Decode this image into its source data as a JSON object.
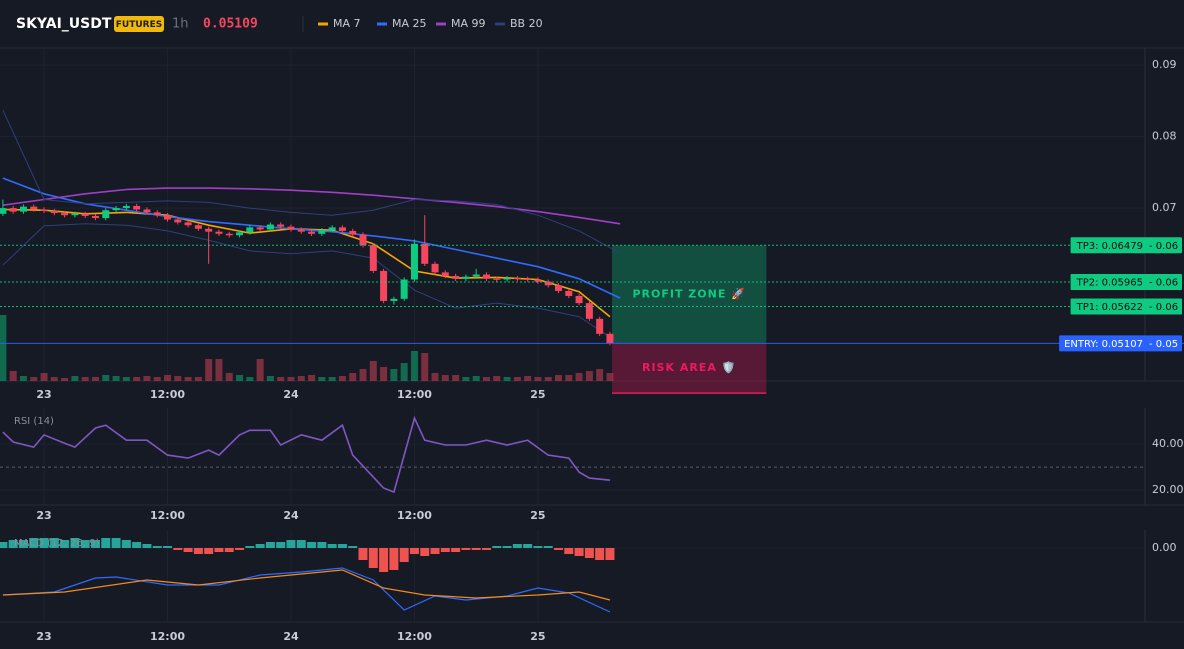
{
  "header": {
    "symbol": "SKYAI_USDT",
    "badge": "FUTURES",
    "interval": "1h",
    "last_price": 0.05109
  },
  "chart_data": [
    {
      "type": "candlestick",
      "xlim": [
        -4.28,
        107
      ],
      "xticks": [
        {
          "value": 0,
          "label": "23"
        },
        {
          "value": 12,
          "label": "12:00"
        },
        {
          "value": 24,
          "label": "24"
        },
        {
          "value": 36,
          "label": "12:00"
        },
        {
          "value": 48,
          "label": "25"
        }
      ],
      "ylim": [
        0.0458,
        0.0924
      ],
      "yticks": [
        0.07,
        0.08,
        0.09
      ],
      "grid": true,
      "up_color": "#0ecb81",
      "down_color": "#f6465d",
      "x": [
        -4,
        -3,
        -2,
        -1,
        0,
        1,
        2,
        3,
        4,
        5,
        6,
        7,
        8,
        9,
        10,
        11,
        12,
        13,
        14,
        15,
        16,
        17,
        18,
        19,
        20,
        21,
        22,
        23,
        24,
        25,
        26,
        27,
        28,
        29,
        30,
        31,
        32,
        33,
        34,
        35,
        36,
        37,
        38,
        39,
        40,
        41,
        42,
        43,
        44,
        45,
        46,
        47,
        48,
        49,
        50,
        51,
        52,
        53,
        54,
        55
      ],
      "open": [
        0.0692,
        0.07,
        0.0695,
        0.0702,
        0.0698,
        0.0696,
        0.0693,
        0.069,
        0.0692,
        0.0689,
        0.0686,
        0.0697,
        0.07,
        0.0703,
        0.0698,
        0.0694,
        0.069,
        0.0684,
        0.068,
        0.0676,
        0.0671,
        0.0667,
        0.0664,
        0.0662,
        0.0666,
        0.0673,
        0.067,
        0.0677,
        0.0674,
        0.067,
        0.0667,
        0.0664,
        0.0669,
        0.0673,
        0.0668,
        0.0663,
        0.0648,
        0.0612,
        0.057,
        0.0573,
        0.06,
        0.065,
        0.0622,
        0.061,
        0.0605,
        0.0601,
        0.0604,
        0.0607,
        0.0601,
        0.06,
        0.0602,
        0.0601,
        0.06,
        0.0597,
        0.0592,
        0.0584,
        0.0577,
        0.0567,
        0.0545,
        0.0524
      ],
      "high": [
        0.0712,
        0.0703,
        0.0705,
        0.0705,
        0.0701,
        0.0699,
        0.0696,
        0.0695,
        0.0695,
        0.0692,
        0.07,
        0.0703,
        0.0706,
        0.0706,
        0.0701,
        0.0697,
        0.0693,
        0.0687,
        0.0683,
        0.0679,
        0.0674,
        0.067,
        0.0667,
        0.0669,
        0.0676,
        0.0676,
        0.068,
        0.068,
        0.0677,
        0.0673,
        0.067,
        0.0672,
        0.0676,
        0.0676,
        0.0671,
        0.0666,
        0.0651,
        0.0615,
        0.0576,
        0.0603,
        0.0656,
        0.069,
        0.0625,
        0.0613,
        0.0608,
        0.0607,
        0.0615,
        0.061,
        0.0604,
        0.0605,
        0.0605,
        0.0604,
        0.0603,
        0.06,
        0.0595,
        0.0587,
        0.058,
        0.057,
        0.0548,
        0.0527
      ],
      "low": [
        0.0689,
        0.0692,
        0.0692,
        0.0695,
        0.0693,
        0.069,
        0.0687,
        0.0687,
        0.0686,
        0.0683,
        0.0683,
        0.0694,
        0.0697,
        0.0695,
        0.0691,
        0.0687,
        0.0681,
        0.0677,
        0.0673,
        0.0668,
        0.0622,
        0.0661,
        0.0659,
        0.0659,
        0.0663,
        0.0667,
        0.0667,
        0.0671,
        0.0667,
        0.0664,
        0.0661,
        0.0661,
        0.0666,
        0.0665,
        0.066,
        0.0645,
        0.0609,
        0.0567,
        0.0565,
        0.057,
        0.0597,
        0.0619,
        0.0607,
        0.0602,
        0.0598,
        0.0598,
        0.0601,
        0.0598,
        0.0597,
        0.0597,
        0.0598,
        0.0597,
        0.0594,
        0.0589,
        0.0581,
        0.0574,
        0.0564,
        0.0542,
        0.0521,
        0.0508
      ],
      "close": [
        0.07,
        0.0695,
        0.0702,
        0.0698,
        0.0696,
        0.0693,
        0.069,
        0.0692,
        0.0689,
        0.0686,
        0.0697,
        0.07,
        0.0703,
        0.0698,
        0.0694,
        0.069,
        0.0684,
        0.068,
        0.0676,
        0.0671,
        0.0667,
        0.0664,
        0.0662,
        0.0666,
        0.0673,
        0.067,
        0.0677,
        0.0674,
        0.067,
        0.0667,
        0.0664,
        0.0669,
        0.0673,
        0.0668,
        0.0663,
        0.0648,
        0.0612,
        0.057,
        0.0573,
        0.06,
        0.065,
        0.0622,
        0.061,
        0.0605,
        0.0601,
        0.0604,
        0.0607,
        0.0601,
        0.06,
        0.0602,
        0.0601,
        0.06,
        0.0597,
        0.0592,
        0.0584,
        0.0577,
        0.0567,
        0.0545,
        0.0524,
        0.0511
      ],
      "volume": [
        66,
        10,
        5,
        4,
        8,
        4,
        3,
        5,
        4,
        4,
        6,
        5,
        4,
        4,
        5,
        4,
        6,
        5,
        4,
        4,
        22,
        22,
        8,
        6,
        4,
        22,
        5,
        4,
        4,
        5,
        6,
        4,
        4,
        5,
        8,
        12,
        20,
        14,
        12,
        18,
        30,
        28,
        8,
        6,
        6,
        4,
        5,
        4,
        5,
        4,
        4,
        5,
        4,
        4,
        6,
        6,
        8,
        10,
        12,
        8
      ],
      "lines": [
        {
          "name": "MA 7",
          "color": "#f7a600",
          "x": [
            -4,
            0,
            4,
            8,
            12,
            16,
            20,
            24,
            28,
            32,
            36,
            40,
            44,
            48,
            52,
            55
          ],
          "values": [
            0.0698,
            0.0697,
            0.0692,
            0.0694,
            0.069,
            0.0676,
            0.0665,
            0.0671,
            0.0669,
            0.065,
            0.0612,
            0.0602,
            0.0603,
            0.06,
            0.0583,
            0.0548
          ]
        },
        {
          "name": "MA 25",
          "color": "#2f6bff",
          "x": [
            -4,
            0,
            4,
            8,
            12,
            16,
            20,
            24,
            28,
            32,
            36,
            40,
            44,
            48,
            52,
            56
          ],
          "values": [
            0.0742,
            0.072,
            0.0706,
            0.0697,
            0.0688,
            0.0681,
            0.0676,
            0.0671,
            0.0667,
            0.0661,
            0.0654,
            0.0642,
            0.063,
            0.0618,
            0.0601,
            0.0574
          ]
        },
        {
          "name": "MA 99",
          "color": "#a03fc8",
          "x": [
            -4,
            0,
            4,
            8,
            12,
            16,
            20,
            24,
            28,
            32,
            36,
            40,
            44,
            48,
            52,
            56
          ],
          "values": [
            0.0704,
            0.0712,
            0.072,
            0.0726,
            0.0728,
            0.0728,
            0.0727,
            0.0725,
            0.0722,
            0.0718,
            0.0713,
            0.0708,
            0.0702,
            0.0695,
            0.0687,
            0.0678
          ]
        },
        {
          "name": "BB 20",
          "color": "#2e3f7c",
          "x": [
            -4,
            0,
            4,
            8,
            12,
            16,
            20,
            24,
            28,
            32,
            36,
            40,
            44,
            48,
            52,
            56
          ],
          "upper": [
            0.0837,
            0.0712,
            0.0706,
            0.0708,
            0.071,
            0.0708,
            0.07,
            0.0694,
            0.069,
            0.0697,
            0.0712,
            0.071,
            0.0705,
            0.069,
            0.0668,
            0.0637
          ],
          "lower": [
            0.062,
            0.0675,
            0.0678,
            0.0676,
            0.0668,
            0.0655,
            0.064,
            0.0636,
            0.064,
            0.063,
            0.0585,
            0.056,
            0.0567,
            0.056,
            0.0548,
            0.051
          ]
        }
      ],
      "levels": [
        {
          "label": "TP3: 0.06479",
          "value": 0.06479,
          "price_tag": "- 0.06",
          "color": "#0ecb81"
        },
        {
          "label": "TP2: 0.05965",
          "value": 0.05965,
          "price_tag": "- 0.06",
          "color": "#0ecb81"
        },
        {
          "label": "TP1: 0.05622",
          "value": 0.05622,
          "price_tag": "- 0.06",
          "color": "#0ecb81"
        },
        {
          "label": "ENTRY: 0.05107",
          "value": 0.05107,
          "price_tag": "- 0.05",
          "color": "#2962ff"
        }
      ],
      "zones": [
        {
          "label": "PROFIT ZONE 🚀",
          "x": [
            55.2,
            70.2
          ],
          "y": [
            0.05107,
            0.06479
          ],
          "color": "#0ecb81"
        },
        {
          "label": "RISK AREA 🛡️",
          "x": [
            55.2,
            70.2
          ],
          "y": [
            0.0441,
            0.05107
          ],
          "color": "#f0185e"
        }
      ]
    },
    {
      "type": "line",
      "title": "RSI (14)",
      "color": "#7e57c2",
      "xlim": [
        -4.28,
        107
      ],
      "xticks": [
        {
          "value": 0,
          "label": "23"
        },
        {
          "value": 12,
          "label": "12:00"
        },
        {
          "value": 24,
          "label": "24"
        },
        {
          "value": 36,
          "label": "12:00"
        },
        {
          "value": 48,
          "label": "25"
        }
      ],
      "ylim": [
        13.5,
        55.7
      ],
      "yticks": [
        {
          "value": 40,
          "label": "40.00"
        },
        {
          "value": 20,
          "label": "20.00"
        }
      ],
      "reference_line": 30,
      "grid": true,
      "x": [
        -4,
        -3,
        -1,
        0,
        2,
        3,
        5,
        6,
        8,
        10,
        12,
        14,
        16,
        17,
        19,
        20,
        22,
        23,
        25,
        27,
        29,
        30,
        33,
        34,
        36,
        37,
        39,
        41,
        43,
        45,
        47,
        49,
        51,
        52,
        53,
        55
      ],
      "values": [
        45.2,
        40.9,
        38.7,
        44,
        40.4,
        38.7,
        47,
        48.2,
        41.7,
        41.7,
        35.2,
        33.9,
        37.4,
        35.2,
        44,
        46,
        46,
        39.6,
        44,
        41.7,
        48.2,
        35.2,
        20.9,
        19.1,
        51.3,
        41.7,
        39.6,
        39.6,
        41.7,
        39.6,
        41.7,
        35.2,
        33.9,
        27.8,
        25.2,
        24.3
      ]
    },
    {
      "type": "macd",
      "title": "MACD (12, 26, 9)",
      "xlim": [
        -4.28,
        107
      ],
      "xticks": [
        {
          "value": 0,
          "label": "23"
        },
        {
          "value": 12,
          "label": "12:00"
        },
        {
          "value": 24,
          "label": "24"
        },
        {
          "value": 36,
          "label": "12:00"
        },
        {
          "value": 48,
          "label": "25"
        }
      ],
      "ylim": [
        -0.0037,
        0.0009
      ],
      "yticks": [
        {
          "value": 0,
          "label": "0.00"
        }
      ],
      "grid": true,
      "positive_color": "#26a69a",
      "negative_color": "#ef5350",
      "histogram": {
        "x": [
          -4,
          -3,
          -2,
          -1,
          0,
          1,
          2,
          3,
          4,
          5,
          6,
          7,
          8,
          9,
          10,
          11,
          12,
          13,
          14,
          15,
          16,
          17,
          18,
          19,
          20,
          21,
          22,
          23,
          24,
          25,
          26,
          27,
          28,
          29,
          30,
          31,
          32,
          33,
          34,
          35,
          36,
          37,
          38,
          39,
          40,
          41,
          42,
          43,
          44,
          45,
          46,
          47,
          48,
          49,
          50,
          51,
          52,
          53,
          54,
          55
        ],
        "values": [
          0.0003,
          0.0004,
          0.0004,
          0.0005,
          0.0005,
          0.0005,
          0.0004,
          0.0005,
          0.0004,
          0.0004,
          0.0005,
          0.0005,
          0.0004,
          0.0003,
          0.0002,
          0.0001,
          0.0001,
          -0.0001,
          -0.0002,
          -0.0003,
          -0.0003,
          -0.0002,
          -0.0002,
          -0.0001,
          0.0001,
          0.0002,
          0.0003,
          0.0003,
          0.0004,
          0.0004,
          0.0003,
          0.0003,
          0.0002,
          0.0002,
          0.0001,
          -0.0006,
          -0.001,
          -0.0012,
          -0.0011,
          -0.0007,
          -0.0003,
          -0.0004,
          -0.0003,
          -0.0002,
          -0.0002,
          -0.0001,
          -0.0001,
          -0.0001,
          0.0001,
          0.0001,
          0.0002,
          0.0002,
          0.0001,
          0.0001,
          -0.0001,
          -0.0003,
          -0.0004,
          -0.0005,
          -0.0006,
          -0.0006
        ]
      },
      "macd": {
        "color": "#2f6bff",
        "x": [
          -4,
          1,
          5,
          7,
          12,
          17,
          21,
          25,
          29,
          32,
          35,
          38,
          41,
          45,
          48,
          51,
          55
        ],
        "values": [
          -0.00235,
          -0.0022,
          -0.0015,
          -0.00145,
          -0.00185,
          -0.00185,
          -0.00135,
          -0.0012,
          -0.001,
          -0.0016,
          -0.0031,
          -0.0024,
          -0.0026,
          -0.0024,
          -0.002,
          -0.00225,
          -0.0032
        ]
      },
      "signal": {
        "color": "#f08a24",
        "x": [
          -4,
          2,
          10,
          15,
          21,
          29,
          33,
          37,
          42,
          48,
          52,
          55
        ],
        "values": [
          -0.00235,
          -0.0022,
          -0.0016,
          -0.00185,
          -0.0015,
          -0.0011,
          -0.002,
          -0.00235,
          -0.0025,
          -0.00235,
          -0.0022,
          -0.0026
        ]
      }
    }
  ]
}
